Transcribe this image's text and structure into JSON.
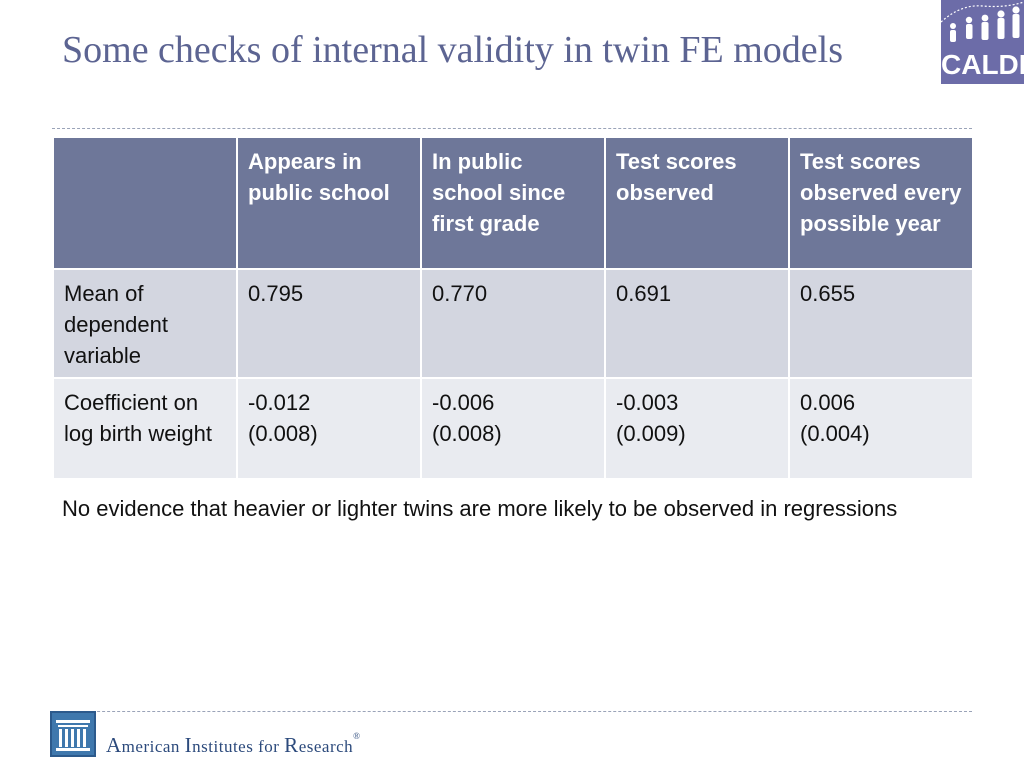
{
  "slide": {
    "title": "Some checks of internal validity in twin FE models",
    "logo_text": "CALDER",
    "note": "No evidence that heavier or lighter twins are more likely to be observed in regressions",
    "footer": {
      "org_big_A": "A",
      "org_merican": "merican ",
      "org_big_I": "I",
      "org_nstitutes": "nstitutes for ",
      "org_big_R": "R",
      "org_esearch": "esearch",
      "reg": "®"
    }
  },
  "table": {
    "headers": [
      "",
      "Appears in public school",
      "In public school since first grade",
      "Test scores observed",
      "Test scores observed every possible year"
    ],
    "rows": [
      {
        "label": "Mean of dependent variable",
        "cells": [
          {
            "value": "0.795",
            "se": ""
          },
          {
            "value": "0.770",
            "se": ""
          },
          {
            "value": "0.691",
            "se": ""
          },
          {
            "value": "0.655",
            "se": ""
          }
        ]
      },
      {
        "label": "Coefficient on log birth weight",
        "cells": [
          {
            "value": "-0.012",
            "se": "(0.008)"
          },
          {
            "value": "-0.006",
            "se": "(0.008)"
          },
          {
            "value": "-0.003",
            "se": "(0.009)"
          },
          {
            "value": "0.006",
            "se": "(0.004)"
          }
        ]
      }
    ]
  },
  "colors": {
    "title": "#5c6492",
    "header_bg": "#6e7799",
    "row1_bg": "#d3d6e0",
    "row2_bg": "#e9ebf0",
    "logo_bg": "#6c6ca8",
    "air_blue": "#2c4a7c"
  },
  "icons": {
    "calder_logo": "calder-logo-icon",
    "air_logo": "air-columns-icon"
  }
}
